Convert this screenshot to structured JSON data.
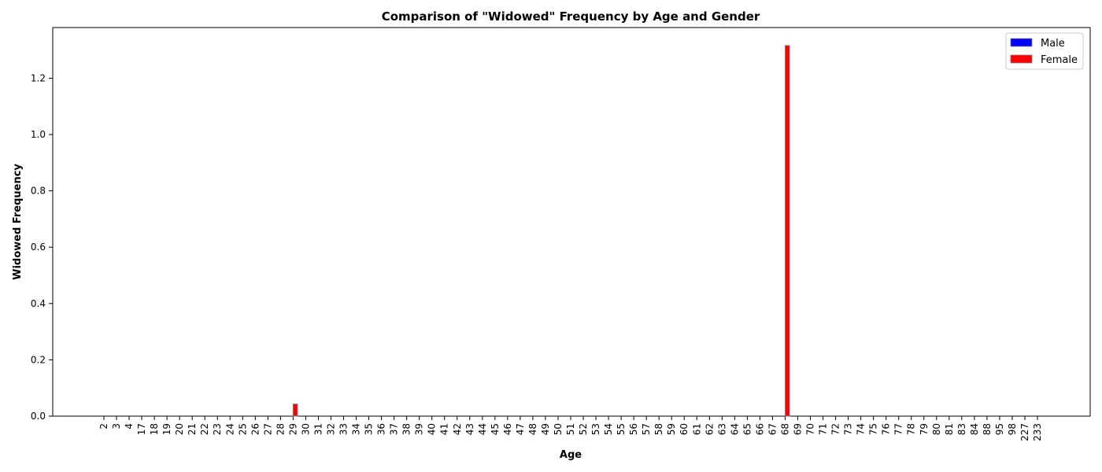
{
  "chart_data": {
    "type": "bar",
    "title": "Comparison of \"Widowed\" Frequency by Age and Gender",
    "xlabel": "Age",
    "ylabel": "Widowed Frequency",
    "categories": [
      "2",
      "3",
      "4",
      "17",
      "18",
      "19",
      "20",
      "21",
      "22",
      "23",
      "24",
      "25",
      "26",
      "27",
      "28",
      "29",
      "30",
      "31",
      "32",
      "33",
      "34",
      "35",
      "36",
      "37",
      "38",
      "39",
      "40",
      "41",
      "42",
      "43",
      "44",
      "45",
      "46",
      "47",
      "48",
      "49",
      "50",
      "51",
      "52",
      "53",
      "54",
      "55",
      "56",
      "57",
      "58",
      "59",
      "60",
      "61",
      "62",
      "63",
      "64",
      "65",
      "66",
      "67",
      "68",
      "69",
      "70",
      "71",
      "72",
      "73",
      "74",
      "75",
      "76",
      "77",
      "78",
      "79",
      "80",
      "81",
      "83",
      "84",
      "88",
      "95",
      "98",
      "227",
      "233"
    ],
    "series": [
      {
        "name": "Male",
        "color": "#0000ff",
        "values": [
          0,
          0,
          0,
          0,
          0,
          0,
          0,
          0,
          0,
          0,
          0,
          0,
          0,
          0,
          0,
          0,
          0,
          0,
          0,
          0,
          0,
          0,
          0,
          0,
          0,
          0,
          0,
          0,
          0,
          0,
          0,
          0,
          0,
          0,
          0,
          0,
          0,
          0,
          0,
          0,
          0,
          0,
          0,
          0,
          0,
          0,
          0,
          0,
          0,
          0,
          0,
          0,
          0,
          0,
          0,
          0,
          0,
          0,
          0,
          0,
          0,
          0,
          0,
          0,
          0,
          0,
          0,
          0,
          0,
          0,
          0,
          0,
          0,
          0,
          0
        ]
      },
      {
        "name": "Female",
        "color": "#ff0000",
        "values": [
          0,
          0,
          0,
          0,
          0,
          0,
          0,
          0,
          0,
          0,
          0,
          0,
          0,
          0,
          0,
          0.043,
          0,
          0,
          0,
          0,
          0,
          0,
          0,
          0,
          0,
          0,
          0,
          0,
          0,
          0,
          0,
          0,
          0,
          0,
          0,
          0,
          0,
          0,
          0,
          0,
          0,
          0,
          0,
          0,
          0,
          0,
          0,
          0,
          0,
          0,
          0,
          0,
          0,
          0,
          1.316,
          0,
          0,
          0,
          0,
          0,
          0,
          0,
          0,
          0,
          0,
          0,
          0,
          0,
          0,
          0,
          0,
          0,
          0,
          0,
          0
        ]
      }
    ],
    "yticks": [
      0.0,
      0.2,
      0.4,
      0.6,
      0.8,
      1.0,
      1.2
    ],
    "ytick_labels": [
      "0.0",
      "0.2",
      "0.4",
      "0.6",
      "0.8",
      "1.0",
      "1.2"
    ],
    "ylim": [
      0,
      1.38
    ],
    "grid": false,
    "legend_position": "top-right"
  }
}
